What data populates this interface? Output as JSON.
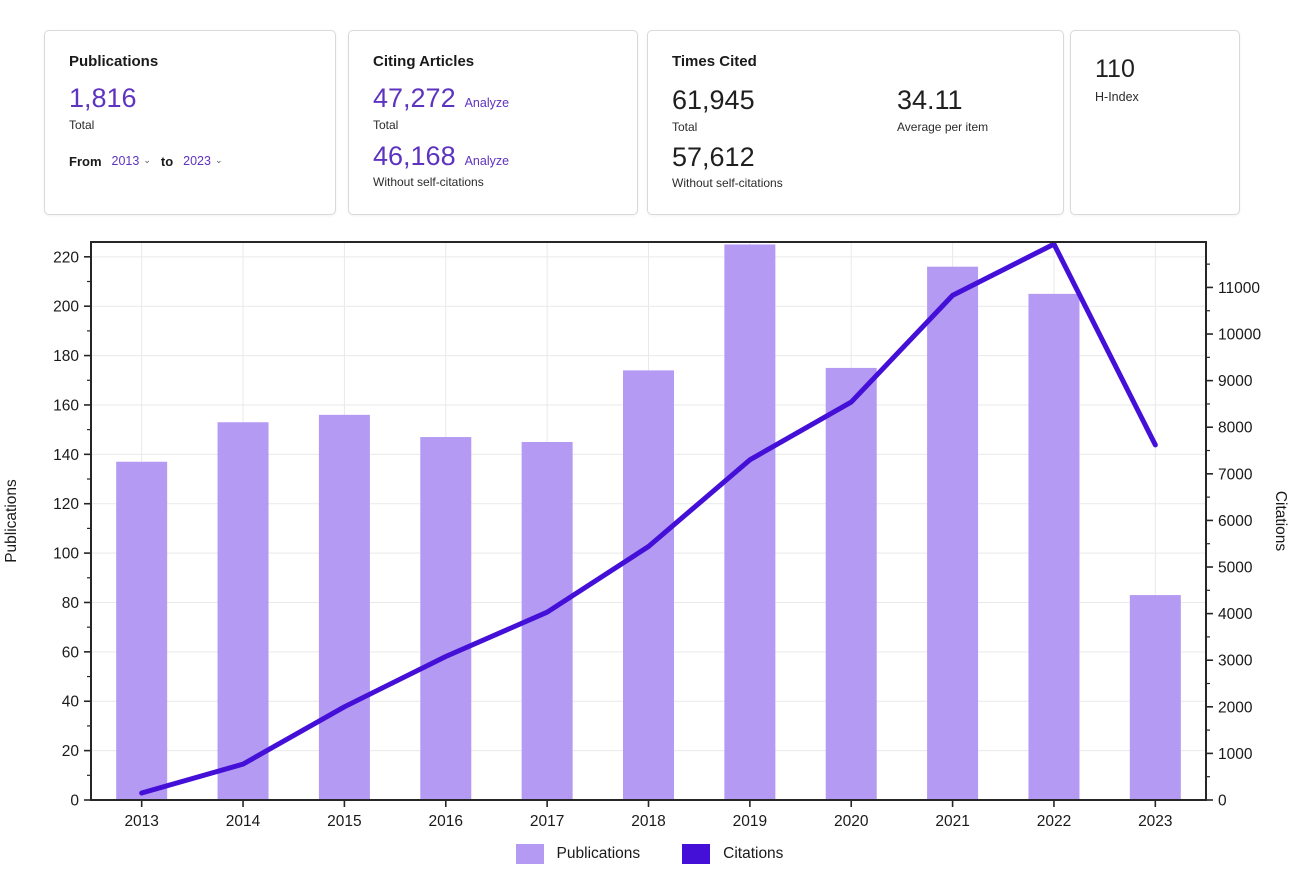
{
  "cards": {
    "publications": {
      "title": "Publications",
      "total_value": "1,816",
      "total_label": "Total",
      "from_label": "From",
      "from_year": "2013",
      "to_label": "to",
      "to_year": "2023"
    },
    "citing_articles": {
      "title": "Citing Articles",
      "total_value": "47,272",
      "total_analyze_label": "Analyze",
      "total_label": "Total",
      "without_self_value": "46,168",
      "without_self_analyze_label": "Analyze",
      "without_self_label": "Without self-citations"
    },
    "times_cited": {
      "title": "Times Cited",
      "total_value": "61,945",
      "total_label": "Total",
      "average_value": "34.11",
      "average_label": "Average per item",
      "without_self_value": "57,612",
      "without_self_label": "Without self-citations"
    },
    "h_index": {
      "value": "110",
      "label": "H-Index"
    }
  },
  "chart_data": {
    "type": "bar",
    "subtype": "combo-bar-line-dual-axis",
    "title": "",
    "categories": [
      "2013",
      "2014",
      "2015",
      "2016",
      "2017",
      "2018",
      "2019",
      "2020",
      "2021",
      "2022",
      "2023"
    ],
    "series": [
      {
        "name": "Publications",
        "type": "bar",
        "axis": "left",
        "color": "#b49af3",
        "values": [
          137,
          153,
          156,
          147,
          145,
          174,
          225,
          175,
          216,
          205,
          83
        ]
      },
      {
        "name": "Citations",
        "type": "line",
        "axis": "right",
        "color": "#4410d8",
        "values": [
          150,
          770,
          2000,
          3080,
          4030,
          5440,
          7300,
          8540,
          10830,
          11930,
          7620
        ]
      }
    ],
    "left_axis": {
      "label": "Publications",
      "min": 0,
      "max": 226,
      "tick_step": 20
    },
    "right_axis": {
      "label": "Citations",
      "min": 0,
      "max": 11975,
      "tick_step": 1000
    },
    "grid": true,
    "legend_position": "bottom"
  },
  "colors": {
    "accent_purple": "#5e33bf",
    "bar_fill": "#b49af3",
    "line_stroke": "#4410d8",
    "card_border": "#d9d9d9",
    "grid_line": "#e9e9e9",
    "axis_spine": "#262626",
    "axis_text": "#1a1a1a"
  }
}
